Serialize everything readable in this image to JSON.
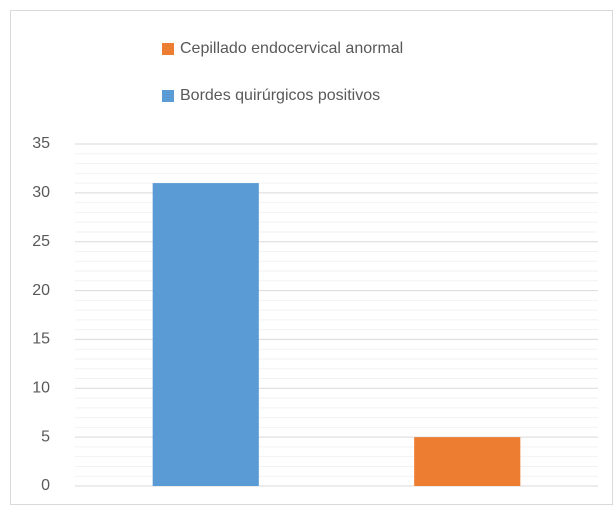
{
  "chart_data": {
    "type": "bar",
    "categories": [
      null,
      null
    ],
    "series": [
      {
        "name": "Cepillado endocervical anormal",
        "color": "#ed7d31",
        "values": [
          null,
          5
        ]
      },
      {
        "name": "Bordes quirúrgicos positivos",
        "color": "#5b9bd5",
        "values": [
          31,
          null
        ]
      }
    ],
    "ylim": [
      0,
      35
    ],
    "yticks": [
      0,
      5,
      10,
      15,
      20,
      25,
      30,
      35
    ],
    "grid": true,
    "minor_grid": true,
    "legend": "top"
  }
}
